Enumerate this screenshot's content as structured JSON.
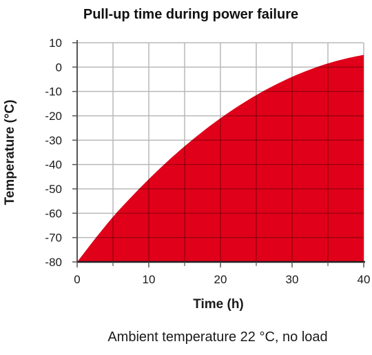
{
  "chart_data": {
    "type": "area",
    "title": "Pull-up time during power failure",
    "xlabel": "Time (h)",
    "ylabel": "Temperature (°C)",
    "caption": "Ambient temperature 22 °C, no load",
    "xlim": [
      0,
      40
    ],
    "ylim": [
      -80,
      10
    ],
    "xticks": [
      "0",
      "10",
      "20",
      "30",
      "40"
    ],
    "yticks": [
      "10",
      "0",
      "-10",
      "-20",
      "-30",
      "-40",
      "-50",
      "-60",
      "-70",
      "-80"
    ],
    "grid": true,
    "fill_color": "#e0001a",
    "series": [
      {
        "x": [
          0,
          2.5,
          5,
          7.5,
          10,
          12.5,
          15,
          17.5,
          20,
          22.5,
          25,
          27.5,
          30,
          32.5,
          35,
          37.5,
          40
        ],
        "y": [
          -80,
          -70.5,
          -61.5,
          -53.5,
          -46,
          -39,
          -32.5,
          -26.5,
          -21,
          -16,
          -11.5,
          -7.5,
          -4,
          -1,
          1.5,
          3.5,
          5
        ]
      }
    ]
  }
}
